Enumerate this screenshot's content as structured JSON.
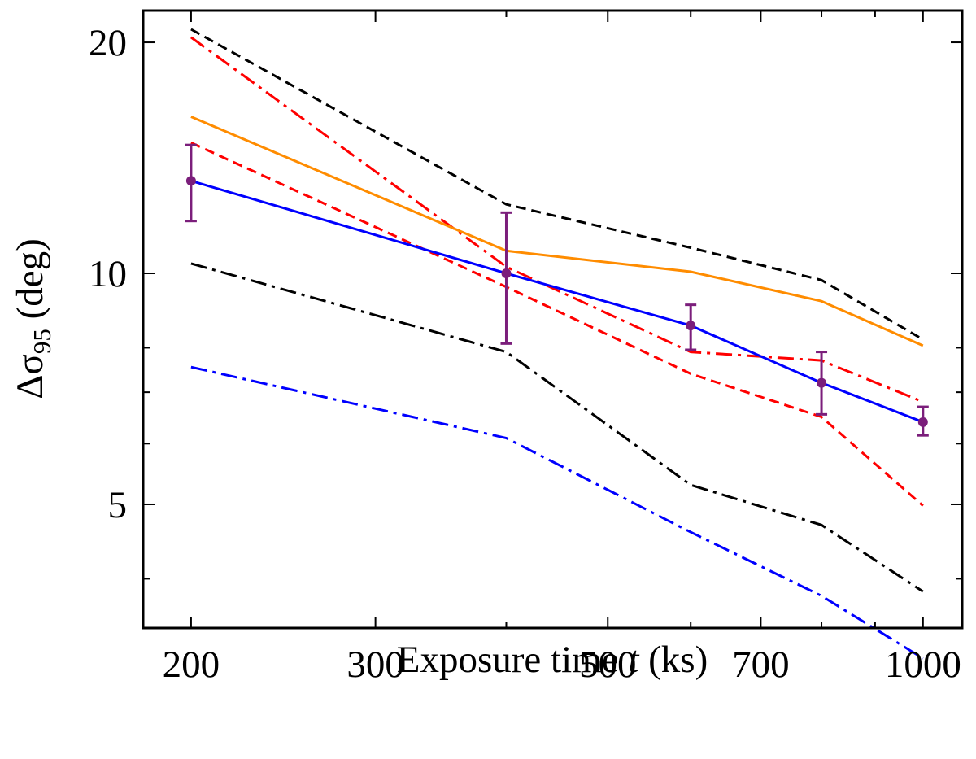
{
  "chart_data": {
    "type": "line",
    "title": "",
    "xlabel": {
      "prefix": "Exposure time ",
      "var": "t",
      "suffix": " (ks)"
    },
    "ylabel": {
      "delta": "Δ",
      "sigma": "σ",
      "sub": "95",
      "suffix": " (deg)"
    },
    "xscale": "log",
    "yscale": "log",
    "xlim": [
      180,
      1090
    ],
    "ylim": [
      3.45,
      22
    ],
    "xticks_major": [
      200,
      300,
      500,
      700,
      1000
    ],
    "xtick_labels": [
      "200",
      "300",
      "500",
      "700",
      "1000"
    ],
    "xticks_minor": [
      400,
      600,
      800,
      900
    ],
    "yticks_major": [
      5,
      10,
      20
    ],
    "ytick_labels": [
      "5",
      "10",
      "20"
    ],
    "yticks_minor": [
      4,
      6,
      7,
      8
    ],
    "x": [
      200,
      400,
      600,
      800,
      1000
    ],
    "series": [
      {
        "name": "black-dashed",
        "color": "#000000",
        "dash": "12,7",
        "values": [
          20.8,
          12.3,
          10.8,
          9.8,
          8.2
        ]
      },
      {
        "name": "red-dashdot",
        "color": "#ff0000",
        "dash": "20,7,4,7",
        "values": [
          20.3,
          10.2,
          7.9,
          7.7,
          6.8
        ]
      },
      {
        "name": "orange-solid",
        "color": "#ff8c00",
        "dash": "",
        "values": [
          16.0,
          10.7,
          10.05,
          9.2,
          8.05
        ]
      },
      {
        "name": "red-dashed",
        "color": "#ff0000",
        "dash": "12,7",
        "values": [
          14.8,
          9.6,
          7.4,
          6.5,
          4.98
        ]
      },
      {
        "name": "blue-solid",
        "color": "#0000ff",
        "dash": "",
        "values": [
          13.2,
          10.0,
          8.55,
          7.2,
          6.4
        ]
      },
      {
        "name": "black-dashdot",
        "color": "#000000",
        "dash": "20,7,4,7",
        "values": [
          10.3,
          7.9,
          5.3,
          4.7,
          3.85
        ]
      },
      {
        "name": "blue-dashdot",
        "color": "#0000ff",
        "dash": "20,7,4,7",
        "values": [
          7.55,
          6.1,
          4.6,
          3.8,
          3.15
        ]
      }
    ],
    "errorbars": {
      "name": "purple-points",
      "color": "#7b1e7b",
      "x": [
        200,
        400,
        600,
        800,
        1000
      ],
      "y": [
        13.2,
        10.0,
        8.55,
        7.2,
        6.4
      ],
      "lower": [
        11.7,
        8.1,
        7.95,
        6.55,
        6.15
      ],
      "upper": [
        14.7,
        12.0,
        9.1,
        7.9,
        6.7
      ]
    }
  }
}
